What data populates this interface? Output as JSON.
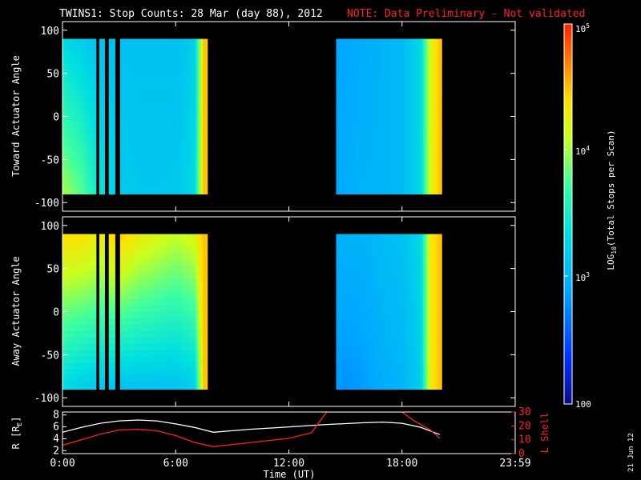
{
  "header": {
    "title": "TWINS1: Stop Counts: 28 Mar (day  88), 2012",
    "note": "NOTE: Data Preliminary - Not validated"
  },
  "panels": {
    "top_ylabel": "Toward Actuator Angle",
    "mid_ylabel": "Away Actuator Angle",
    "bottom_ylabel_left": "R [R",
    "bottom_ylabel_left_sub": "E",
    "bottom_ylabel_left_close": "]",
    "bottom_ylabel_right": "L Shell"
  },
  "xaxis": {
    "label": "Time (UT)",
    "ticks": [
      "0:00",
      "6:00",
      "12:00",
      "18:00",
      "23:59"
    ]
  },
  "colorbar": {
    "label_prefix": "LOG",
    "label_sub": "10",
    "label_suffix": "(Total Stops per Scan)",
    "tick_top_base": "10",
    "tick_top_exp": "5",
    "tick_mid_base": "10",
    "tick_mid_exp": "4",
    "tick_low_base": "10",
    "tick_low_exp": "3",
    "tick_bottom": "100",
    "scale": "log",
    "range": [
      100,
      100000
    ]
  },
  "footer": {
    "date_stamp": "21 Jun 12"
  },
  "colors": {
    "background": "#000000",
    "axes": "#ffffff",
    "note": "#ff2020",
    "r_trace": "#ffffff",
    "l_trace": "#ff2020"
  },
  "chart_data": [
    {
      "type": "heatmap",
      "title": "TWINS1: Stop Counts: 28 Mar (day  88), 2012",
      "ylabel": "Toward Actuator Angle",
      "xlim": [
        0,
        24
      ],
      "ylim": [
        -110,
        110
      ],
      "ytick_labels": [
        "-100",
        "-50",
        "0",
        "50",
        "100"
      ],
      "x_units": "hours UT",
      "data_coverage_hours": [
        [
          0,
          7.7
        ],
        [
          14.5,
          20.1
        ]
      ],
      "data_gaps_hours": [
        [
          1.8,
          1.95
        ],
        [
          2.25,
          2.45
        ],
        [
          2.8,
          3.05
        ],
        [
          7.7,
          14.5
        ]
      ],
      "angle_range": [
        -90,
        90
      ],
      "counts_profile_log10": {
        "hours": [
          0,
          1,
          2,
          3,
          4,
          5,
          6,
          7,
          7.5,
          14.5,
          15,
          16,
          17,
          18,
          19,
          19.5,
          20
        ],
        "low_angle": [
          4.0,
          3.8,
          3.4,
          3.2,
          3.15,
          3.15,
          3.15,
          3.3,
          4.5,
          2.9,
          2.95,
          3.0,
          3.0,
          3.05,
          3.3,
          4.2,
          4.5
        ],
        "high_angle": [
          3.3,
          3.2,
          3.1,
          3.1,
          3.1,
          3.1,
          3.1,
          3.2,
          4.5,
          2.9,
          2.9,
          2.95,
          3.0,
          3.05,
          3.3,
          4.2,
          4.5
        ]
      }
    },
    {
      "type": "heatmap",
      "ylabel": "Away Actuator Angle",
      "xlim": [
        0,
        24
      ],
      "ylim": [
        -110,
        110
      ],
      "ytick_labels": [
        "-100",
        "-50",
        "0",
        "50",
        "100"
      ],
      "x_units": "hours UT",
      "data_coverage_hours": [
        [
          0,
          7.7
        ],
        [
          14.5,
          20.1
        ]
      ],
      "data_gaps_hours": [
        [
          1.8,
          1.95
        ],
        [
          2.25,
          2.45
        ],
        [
          2.8,
          3.05
        ],
        [
          7.7,
          14.5
        ]
      ],
      "angle_range": [
        -90,
        90
      ],
      "counts_profile_log10": {
        "hours": [
          0,
          1,
          2,
          3,
          4,
          5,
          6,
          7,
          7.5,
          14.5,
          15,
          16,
          17,
          18,
          19,
          19.5,
          20
        ],
        "low_angle": [
          3.3,
          3.2,
          3.15,
          3.1,
          3.1,
          3.1,
          3.1,
          3.2,
          4.5,
          2.85,
          2.8,
          2.85,
          2.95,
          3.0,
          3.2,
          4.3,
          4.5
        ],
        "high_angle": [
          4.4,
          4.4,
          4.3,
          4.5,
          4.3,
          4.2,
          4.1,
          4.2,
          4.5,
          2.95,
          3.0,
          3.0,
          3.05,
          3.1,
          3.3,
          4.3,
          4.5
        ]
      }
    },
    {
      "type": "line",
      "xlabel": "Time (UT)",
      "xlim": [
        0,
        24
      ],
      "xtick_labels": [
        "0:00",
        "6:00",
        "12:00",
        "18:00",
        "23:59"
      ],
      "ylabel": "R [RE]",
      "ylim": [
        1.5,
        8.5
      ],
      "ytick_labels": [
        "2",
        "4",
        "6",
        "8"
      ],
      "y2label": "L Shell",
      "y2lim": [
        0,
        30
      ],
      "y2tick_labels": [
        "0",
        "10",
        "20",
        "30"
      ],
      "series": [
        {
          "name": "R [RE]",
          "axis": "left",
          "x": [
            0,
            1,
            2,
            3,
            4,
            5,
            6,
            7,
            8,
            9,
            10,
            11,
            12,
            13,
            14,
            15,
            16,
            17,
            18,
            19,
            20
          ],
          "y": [
            5.1,
            5.9,
            6.6,
            7.0,
            7.15,
            7.0,
            6.5,
            5.9,
            5.1,
            5.35,
            5.6,
            5.8,
            6.0,
            6.2,
            6.4,
            6.55,
            6.7,
            6.8,
            6.6,
            5.9,
            4.7
          ]
        },
        {
          "name": "L Shell",
          "axis": "right",
          "x": [
            0,
            1,
            2,
            3,
            4,
            5,
            6,
            7,
            8,
            10,
            12,
            13.2,
            14,
            18,
            18.6,
            19.5,
            20
          ],
          "y": [
            6,
            10,
            14,
            17,
            17.5,
            16.5,
            13,
            8,
            5,
            8,
            11,
            15,
            30,
            30,
            24,
            17,
            11
          ]
        }
      ]
    }
  ]
}
